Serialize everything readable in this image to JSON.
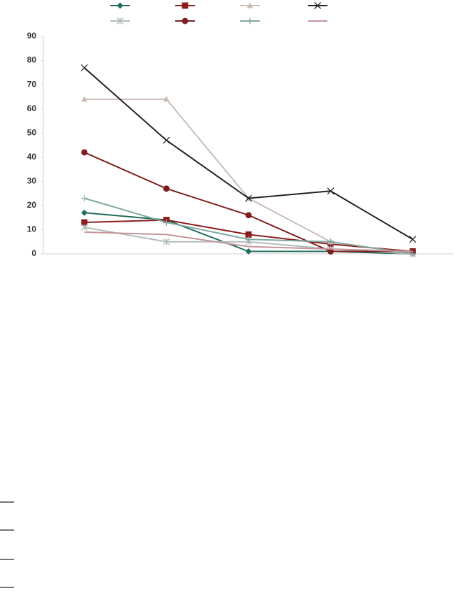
{
  "chart_data": {
    "type": "line",
    "categories": [
      null,
      null,
      null,
      null,
      null
    ],
    "series": [
      {
        "color": "#1f6b5c",
        "marker": "diamond",
        "values": [
          17,
          14,
          1,
          1,
          0
        ]
      },
      {
        "color": "#8b1c1c",
        "marker": "square",
        "values": [
          13,
          14,
          8,
          4,
          1
        ]
      },
      {
        "color": "#cbbcb6",
        "marker": "triangle",
        "values": [
          64,
          64,
          23,
          5,
          0
        ]
      },
      {
        "color": "#222222",
        "marker": "x",
        "values": [
          77,
          47,
          23,
          26,
          6
        ]
      },
      {
        "color": "#b3bcba",
        "marker": "asterisk",
        "values": [
          11,
          5,
          5,
          2,
          0
        ]
      },
      {
        "color": "#7e1e1e",
        "marker": "circle",
        "values": [
          42,
          27,
          16,
          1,
          1
        ]
      },
      {
        "color": "#7fa89f",
        "marker": "plus",
        "values": [
          23,
          13,
          6,
          5,
          0
        ]
      },
      {
        "color": "#c4959a",
        "marker": "none",
        "values": [
          9,
          8,
          3,
          2,
          1
        ]
      }
    ],
    "ylim": [
      0,
      90
    ],
    "yticks": [
      0,
      10,
      20,
      30,
      40,
      50,
      60,
      70,
      80,
      90
    ],
    "grid": false
  }
}
